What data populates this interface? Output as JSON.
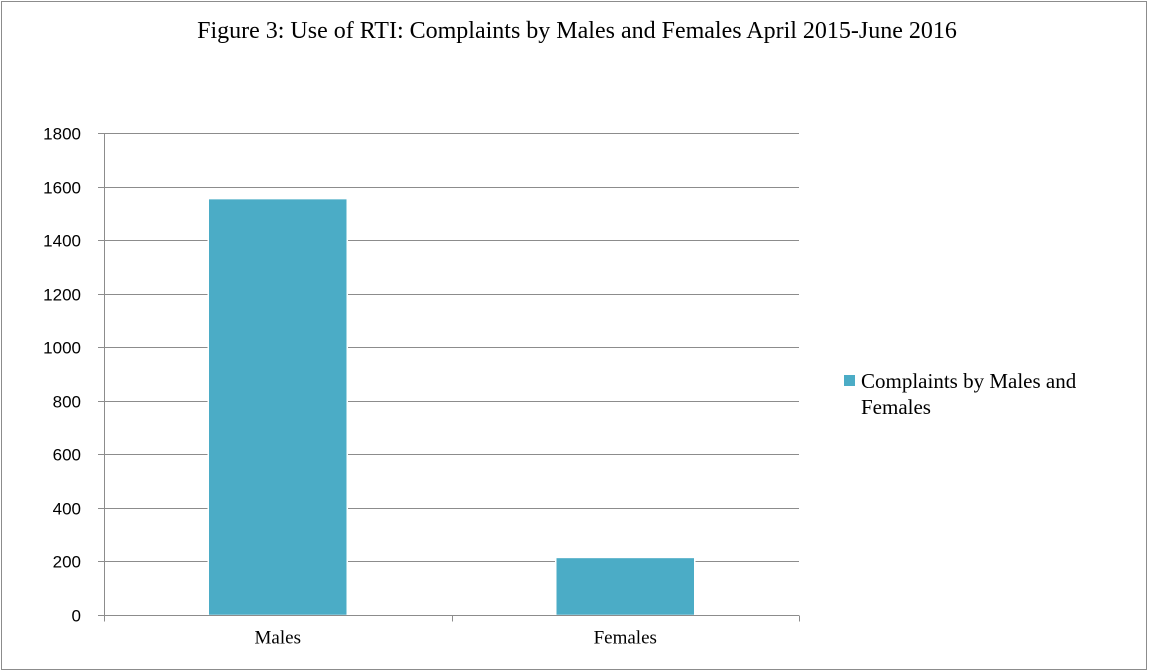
{
  "chart_data": {
    "type": "bar",
    "title": "Figure 3: Use of RTI: Complaints by Males and Females  April 2015-June 2016",
    "categories": [
      "Males",
      "Females"
    ],
    "series": [
      {
        "name": "Complaints by Males and Females",
        "values": [
          1555,
          215
        ],
        "color": "#4BACC6"
      }
    ],
    "xlabel": "",
    "ylabel": "",
    "ylim": [
      0,
      1800
    ],
    "yticks": [
      0,
      200,
      400,
      600,
      800,
      1000,
      1200,
      1400,
      1600,
      1800
    ],
    "grid": true,
    "legend_position": "right"
  }
}
